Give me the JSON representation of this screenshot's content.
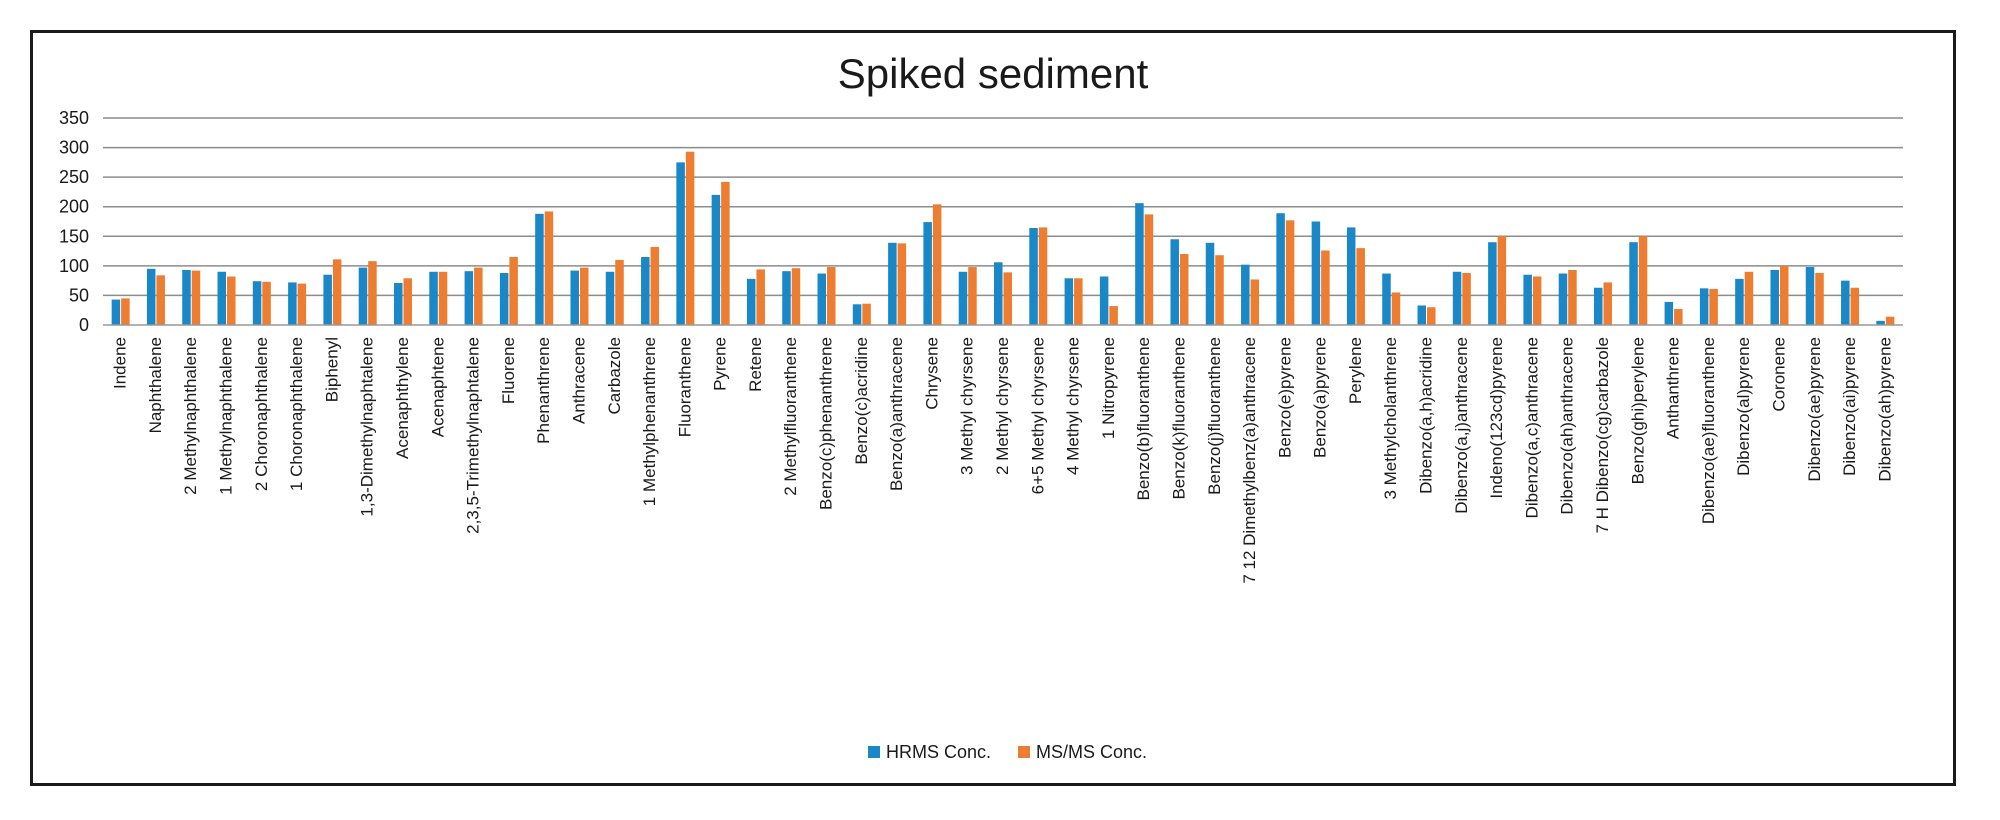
{
  "chart_data": {
    "type": "bar",
    "title": "Spiked sediment",
    "xlabel": "",
    "ylabel": "",
    "ylim": [
      0,
      350
    ],
    "yticks": [
      0,
      50,
      100,
      150,
      200,
      250,
      300,
      350
    ],
    "grid": true,
    "legend_position": "bottom",
    "categories": [
      "Indene",
      "Naphthalene",
      "2 Methylnaphthalene",
      "1 Methylnaphthalene",
      "2 Choronaphthalene",
      "1 Choronaphthalene",
      "Biphenyl",
      "1,3-Dimethylnaphtalene",
      "Acenaphthylene",
      "Acenaphtene",
      "2,3,5-Trimethylnaphtalene",
      "Fluorene",
      "Phenanthrene",
      "Anthracene",
      "Carbazole",
      "1 Methylphenanthrene",
      "Fluoranthene",
      "Pyrene",
      "Retene",
      "2 Methylfluoranthene",
      "Benzo(c)phenanthrene",
      "Benzo(c)acridine",
      "Benzo(a)anthracene",
      "Chrysene",
      "3 Methyl chyrsene",
      "2 Methyl chyrsene",
      "6+5 Methyl chyrsene",
      "4 Methyl chyrsene",
      "1 Nitropyrene",
      "Benzo(b)fluoranthene",
      "Benzo(k)fluoranthene",
      "Benzo(j)fluoranthene",
      "7 12 Dimethylbenz(a)anthracene",
      "Benzo(e)pyrene",
      "Benzo(a)pyrene",
      "Perylene",
      "3 Methylcholanthrene",
      "Dibenzo(a,h)acridine",
      "Dibenzo(a,j)anthracene",
      "Indeno(123cd)pyrene",
      "Dibenzo(a,c)anthracene",
      "Dibenzo(ah)anthracene",
      "7 H Dibenzo(cg)carbazole",
      "Benzo(ghi)perylene",
      "Anthanthrene",
      "Dibenzo(ae)fluoranthene",
      "Dibenzo(al)pyrene",
      "Coronene",
      "Dibenzo(ae)pyrene",
      "Dibenzo(ai)pyrene",
      "Dibenzo(ah)pyrene"
    ],
    "series": [
      {
        "name": "HRMS Conc.",
        "color": "#1a87c7",
        "values": [
          43,
          95,
          93,
          90,
          74,
          72,
          85,
          97,
          71,
          90,
          91,
          88,
          188,
          92,
          90,
          115,
          275,
          220,
          78,
          91,
          87,
          35,
          139,
          174,
          90,
          106,
          164,
          79,
          82,
          206,
          145,
          139,
          102,
          189,
          175,
          165,
          87,
          33,
          90,
          140,
          85,
          87,
          63,
          140,
          39,
          62,
          78,
          93,
          98,
          75,
          7
        ]
      },
      {
        "name": "MS/MS Conc.",
        "color": "#ed7d31",
        "values": [
          45,
          84,
          92,
          82,
          73,
          70,
          111,
          108,
          79,
          90,
          97,
          115,
          192,
          97,
          110,
          132,
          293,
          242,
          94,
          96,
          98,
          36,
          138,
          204,
          98,
          89,
          165,
          79,
          32,
          187,
          120,
          118,
          77,
          177,
          126,
          130,
          55,
          30,
          88,
          150,
          82,
          93,
          72,
          150,
          27,
          61,
          90,
          100,
          88,
          63,
          14
        ]
      }
    ]
  }
}
